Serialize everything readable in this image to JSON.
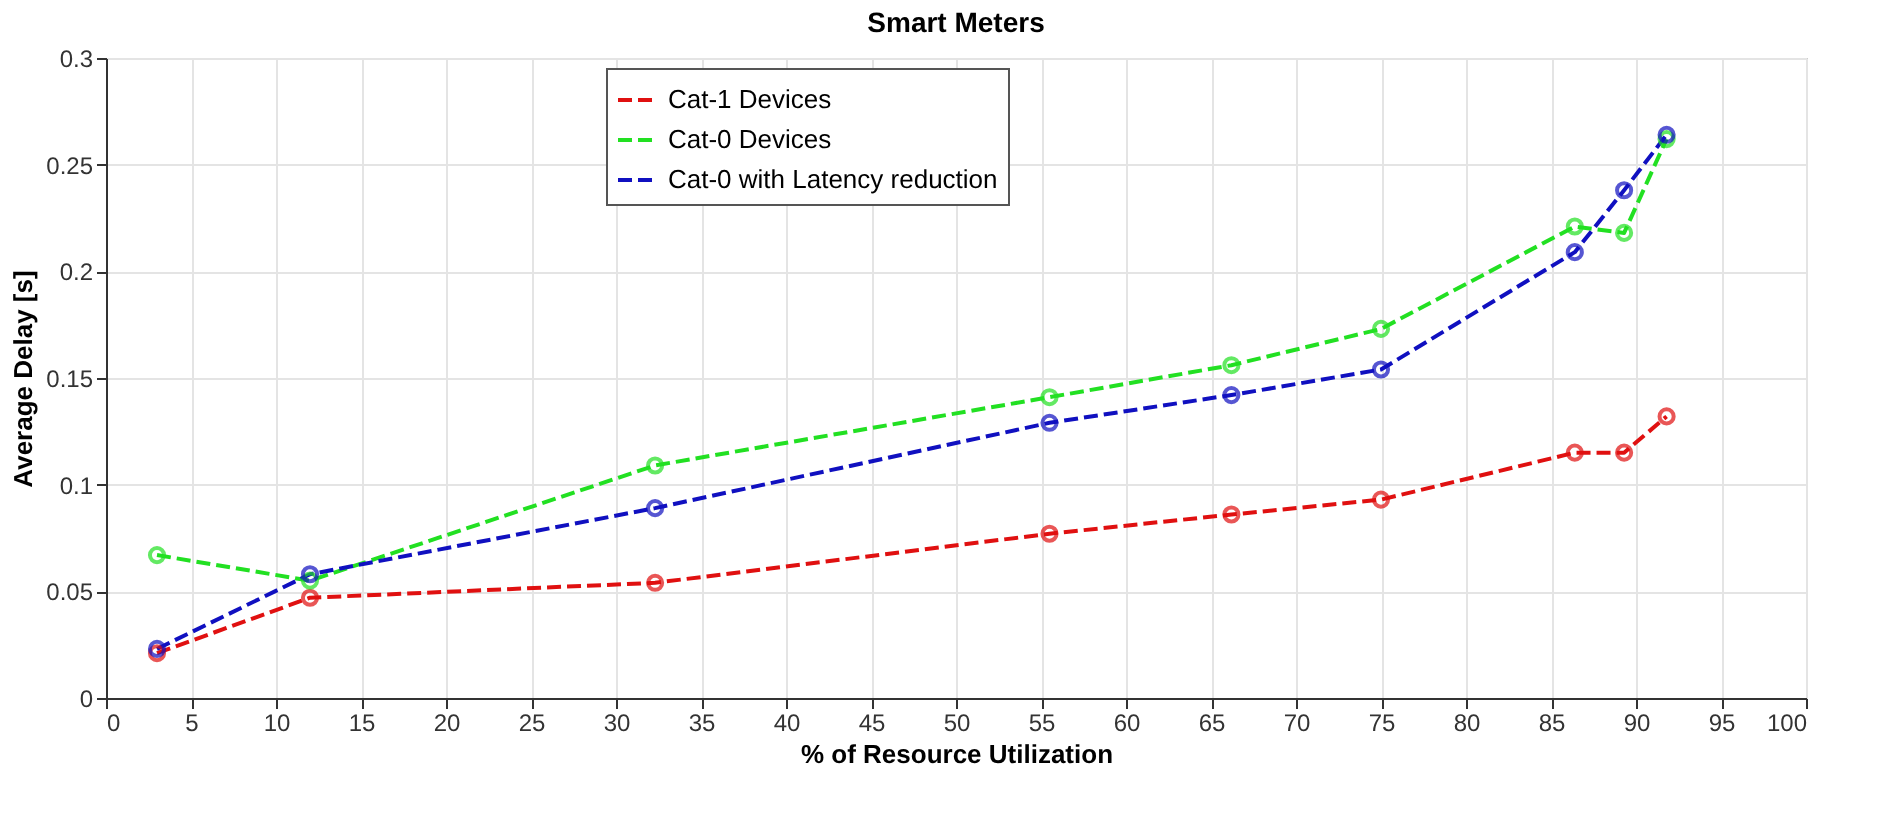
{
  "chart_data": {
    "type": "line",
    "title": "Smart Meters",
    "xlabel": "% of Resource Utilization",
    "ylabel": "Average Delay [s]",
    "x": [
      3,
      12,
      32.3,
      55.5,
      66.2,
      75,
      86.4,
      89.3,
      91.8
    ],
    "series": [
      {
        "name": "Cat-1 Devices",
        "color": "#e01010",
        "values": [
          0.021,
          0.047,
          0.054,
          0.077,
          0.086,
          0.093,
          0.115,
          0.115,
          0.132
        ]
      },
      {
        "name": "Cat-0 Devices",
        "color": "#22e022",
        "values": [
          0.067,
          0.055,
          0.109,
          0.141,
          0.156,
          0.173,
          0.221,
          0.218,
          0.262
        ]
      },
      {
        "name": "Cat-0 with Latency reduction",
        "color": "#1010c0",
        "values": [
          0.023,
          0.058,
          0.089,
          0.129,
          0.142,
          0.154,
          0.209,
          0.238,
          0.264
        ]
      }
    ],
    "xlim": [
      0,
      100
    ],
    "xticks": [
      0,
      5,
      10,
      15,
      20,
      25,
      30,
      35,
      40,
      45,
      50,
      55,
      60,
      65,
      70,
      75,
      80,
      85,
      90,
      95,
      100
    ],
    "ylim": [
      0,
      0.3
    ],
    "yticks": [
      0,
      0.05,
      0.1,
      0.15,
      0.2,
      0.25,
      0.3
    ],
    "grid": true,
    "legend": "top",
    "marker": "circle",
    "line_style": "dashed"
  }
}
